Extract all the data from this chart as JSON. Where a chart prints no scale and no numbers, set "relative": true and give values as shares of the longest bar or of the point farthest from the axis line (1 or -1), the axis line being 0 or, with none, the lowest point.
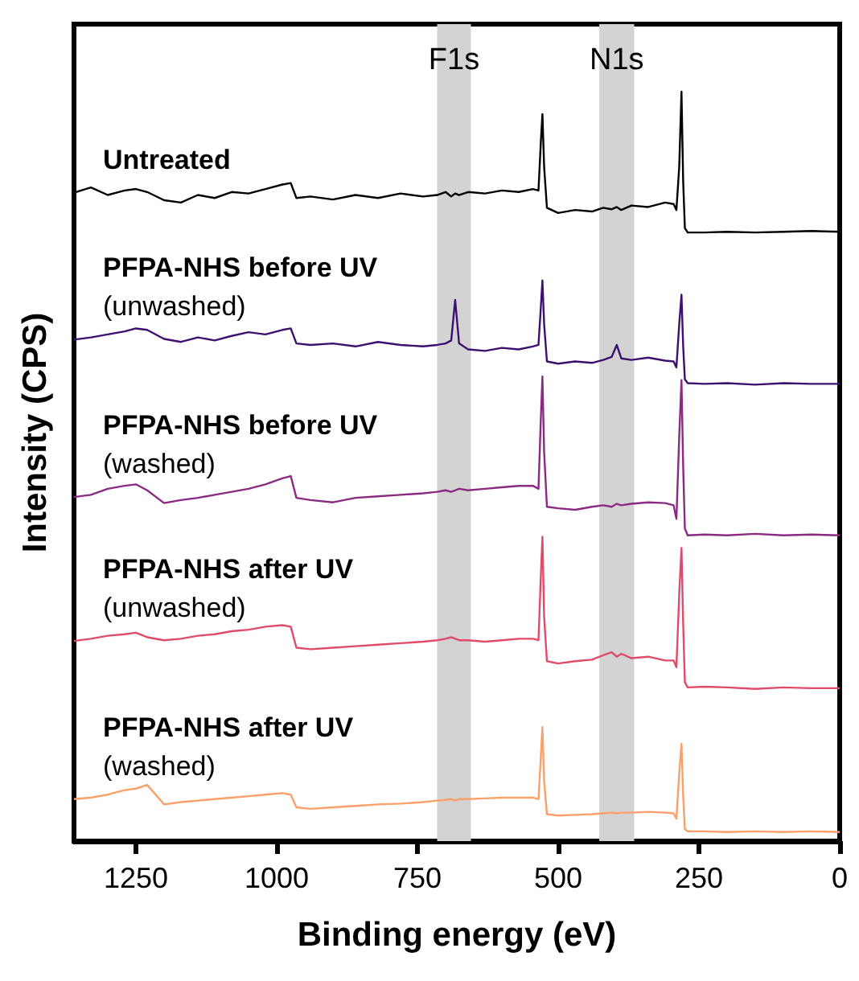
{
  "chart_data": {
    "type": "line",
    "relative": true,
    "xlabel": "Binding energy (eV)",
    "ylabel": "Intensity (CPS)",
    "xlim": [
      1360,
      0
    ],
    "xticks": [
      1250,
      1000,
      750,
      500,
      250,
      0
    ],
    "grid": false,
    "legend": false,
    "marker": "none",
    "line_style": "solid",
    "x": [
      1360,
      1330,
      1300,
      1270,
      1250,
      1230,
      1200,
      1170,
      1140,
      1110,
      1080,
      1050,
      1020,
      990,
      975,
      965,
      940,
      900,
      860,
      820,
      780,
      740,
      715,
      700,
      690,
      683,
      676,
      660,
      630,
      600,
      570,
      545,
      535,
      531,
      528,
      525,
      520,
      500,
      470,
      440,
      420,
      405,
      396,
      388,
      370,
      340,
      310,
      295,
      290,
      285,
      281,
      278,
      275,
      270,
      240,
      200,
      150,
      100,
      50,
      0
    ],
    "bands": [
      {
        "axis": "x",
        "from": 715,
        "to": 655,
        "label": "F1s",
        "color": "#d3d3d3"
      },
      {
        "axis": "x",
        "from": 427,
        "to": 365,
        "label": "N1s",
        "color": "#d3d3d3"
      }
    ],
    "series": [
      {
        "name": "Untreated",
        "color": "#000000",
        "values": [
          0.865,
          0.872,
          0.862,
          0.868,
          0.87,
          0.866,
          0.855,
          0.852,
          0.862,
          0.858,
          0.866,
          0.864,
          0.87,
          0.876,
          0.878,
          0.858,
          0.86,
          0.856,
          0.862,
          0.858,
          0.864,
          0.86,
          0.862,
          0.866,
          0.86,
          0.864,
          0.862,
          0.866,
          0.864,
          0.868,
          0.866,
          0.87,
          0.868,
          0.93,
          0.97,
          0.9,
          0.845,
          0.838,
          0.842,
          0.84,
          0.845,
          0.843,
          0.846,
          0.842,
          0.848,
          0.846,
          0.852,
          0.85,
          0.842,
          0.9,
          1.0,
          0.88,
          0.818,
          0.812,
          0.812,
          0.813,
          0.812,
          0.813,
          0.814,
          0.813
        ]
      },
      {
        "name": "PFPA-NHS before UV (unwashed)",
        "color": "#3d1070",
        "values": [
          0.669,
          0.672,
          0.676,
          0.68,
          0.684,
          0.682,
          0.67,
          0.666,
          0.672,
          0.668,
          0.674,
          0.679,
          0.676,
          0.682,
          0.684,
          0.664,
          0.662,
          0.664,
          0.66,
          0.666,
          0.662,
          0.66,
          0.662,
          0.664,
          0.668,
          0.722,
          0.664,
          0.656,
          0.654,
          0.658,
          0.656,
          0.66,
          0.662,
          0.71,
          0.748,
          0.69,
          0.64,
          0.637,
          0.64,
          0.638,
          0.642,
          0.646,
          0.662,
          0.644,
          0.642,
          0.645,
          0.641,
          0.64,
          0.632,
          0.69,
          0.729,
          0.66,
          0.616,
          0.611,
          0.61,
          0.611,
          0.609,
          0.611,
          0.61,
          0.61
        ]
      },
      {
        "name": "PFPA-NHS before UV (washed)",
        "color": "#8b2a82",
        "values": [
          0.459,
          0.462,
          0.47,
          0.474,
          0.476,
          0.468,
          0.451,
          0.455,
          0.458,
          0.462,
          0.466,
          0.47,
          0.476,
          0.484,
          0.487,
          0.458,
          0.455,
          0.452,
          0.458,
          0.46,
          0.462,
          0.464,
          0.466,
          0.468,
          0.466,
          0.468,
          0.47,
          0.468,
          0.47,
          0.472,
          0.474,
          0.474,
          0.47,
          0.56,
          0.62,
          0.52,
          0.446,
          0.444,
          0.442,
          0.446,
          0.448,
          0.446,
          0.45,
          0.448,
          0.45,
          0.452,
          0.451,
          0.448,
          0.43,
          0.54,
          0.615,
          0.5,
          0.417,
          0.408,
          0.409,
          0.408,
          0.41,
          0.408,
          0.409,
          0.408
        ]
      },
      {
        "name": "PFPA-NHS after UV (unwashed)",
        "color": "#e04b6a",
        "values": [
          0.267,
          0.27,
          0.274,
          0.276,
          0.278,
          0.272,
          0.268,
          0.27,
          0.274,
          0.276,
          0.28,
          0.282,
          0.286,
          0.288,
          0.286,
          0.258,
          0.256,
          0.258,
          0.26,
          0.262,
          0.264,
          0.266,
          0.268,
          0.27,
          0.272,
          0.27,
          0.268,
          0.268,
          0.266,
          0.268,
          0.27,
          0.27,
          0.268,
          0.35,
          0.406,
          0.3,
          0.24,
          0.237,
          0.24,
          0.242,
          0.248,
          0.252,
          0.246,
          0.25,
          0.244,
          0.246,
          0.241,
          0.241,
          0.232,
          0.33,
          0.391,
          0.29,
          0.212,
          0.205,
          0.206,
          0.205,
          0.203,
          0.205,
          0.204,
          0.204
        ]
      },
      {
        "name": "PFPA-NHS after UV (washed)",
        "color": "#fca06a",
        "values": [
          0.056,
          0.058,
          0.062,
          0.068,
          0.07,
          0.075,
          0.049,
          0.052,
          0.054,
          0.056,
          0.058,
          0.06,
          0.062,
          0.064,
          0.062,
          0.045,
          0.043,
          0.045,
          0.047,
          0.049,
          0.05,
          0.052,
          0.054,
          0.055,
          0.056,
          0.054,
          0.056,
          0.056,
          0.057,
          0.058,
          0.058,
          0.058,
          0.056,
          0.11,
          0.152,
          0.08,
          0.036,
          0.034,
          0.035,
          0.036,
          0.037,
          0.038,
          0.037,
          0.038,
          0.038,
          0.039,
          0.038,
          0.037,
          0.03,
          0.09,
          0.13,
          0.06,
          0.016,
          0.013,
          0.013,
          0.012,
          0.013,
          0.012,
          0.013,
          0.012
        ]
      }
    ]
  }
}
